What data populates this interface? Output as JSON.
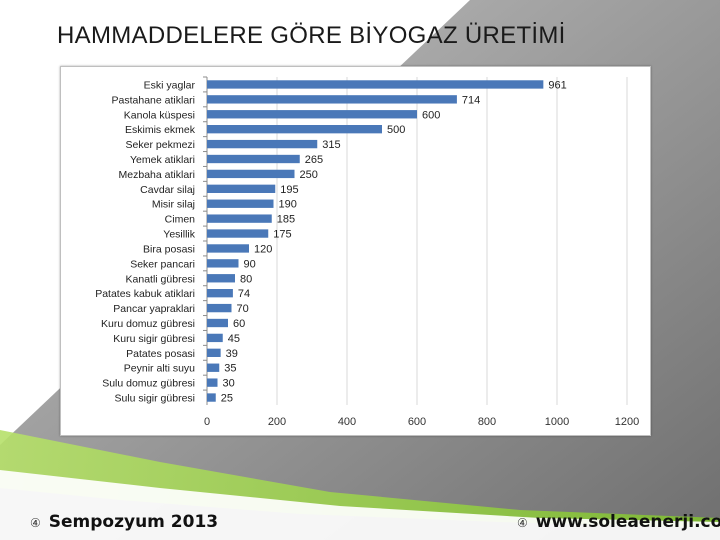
{
  "slide": {
    "title": "HAMMADDELERE GÖRE BİYOGAZ ÜRETİMİ",
    "footer_left": "Sempozyum 2013",
    "footer_right": "www.soleaenerji.com",
    "footer_bullet": "④"
  },
  "colors": {
    "bar": "#4a78b8",
    "grid": "#d9d9d9",
    "background_gray": "#9a9a9a",
    "accent_green": "#8cc63f"
  },
  "chart_data": {
    "type": "bar",
    "orientation": "horizontal",
    "categories": [
      "Eski yaglar",
      "Pastahane atiklari",
      "Kanola küspesi",
      "Eskimis ekmek",
      "Seker pekmezi",
      "Yemek atiklari",
      "Mezbaha atiklari",
      "Cavdar silaj",
      "Misir silaj",
      "Cimen",
      "Yesillik",
      "Bira posasi",
      "Seker pancari",
      "Kanatli gübresi",
      "Patates kabuk atiklari",
      "Pancar yapraklari",
      "Kuru domuz gübresi",
      "Kuru sigir gübresi",
      "Patates posasi",
      "Peynir alti suyu",
      "Sulu domuz gübresi",
      "Sulu sigir gübresi"
    ],
    "values": [
      961,
      714,
      600,
      500,
      315,
      265,
      250,
      195,
      190,
      185,
      175,
      120,
      90,
      80,
      74,
      70,
      60,
      45,
      39,
      35,
      30,
      25
    ],
    "xlim": [
      0,
      1200
    ],
    "xticks": [
      0,
      200,
      400,
      600,
      800,
      1000,
      1200
    ],
    "grid": true,
    "legend": "none",
    "title": "",
    "xlabel": "",
    "ylabel": ""
  }
}
